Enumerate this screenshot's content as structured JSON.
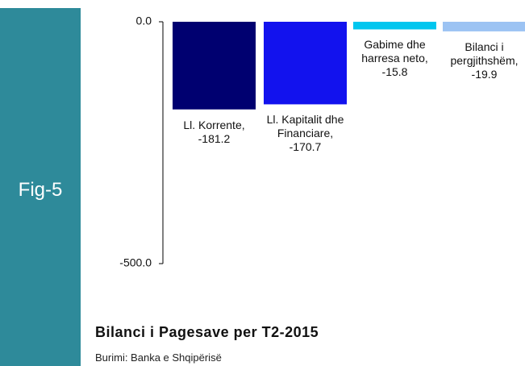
{
  "chart_data": {
    "type": "bar",
    "figure_label": "Fig-5",
    "title": "Bilanci i Pagesave per T2-2015",
    "subtitle": "Burimi: Banka e Shqipërisë",
    "values": [
      -181.2,
      -170.7,
      -15.8,
      -19.9
    ],
    "value_labels": [
      "Ll. Korrente, -181.2",
      "Ll. Kapitalit dhe Financiare, -170.7",
      "Gabime dhe harresa neto, -15.8",
      "Bilanci i pergjithshëm, -19.9"
    ],
    "colors": [
      "#000070",
      "#1212ee",
      "#00c6ef",
      "#9cc3f3"
    ],
    "ylim": [
      -500,
      0
    ],
    "yticks": [
      {
        "value": 0,
        "label": "0.0"
      },
      {
        "value": -500,
        "label": "-500.0"
      }
    ]
  }
}
